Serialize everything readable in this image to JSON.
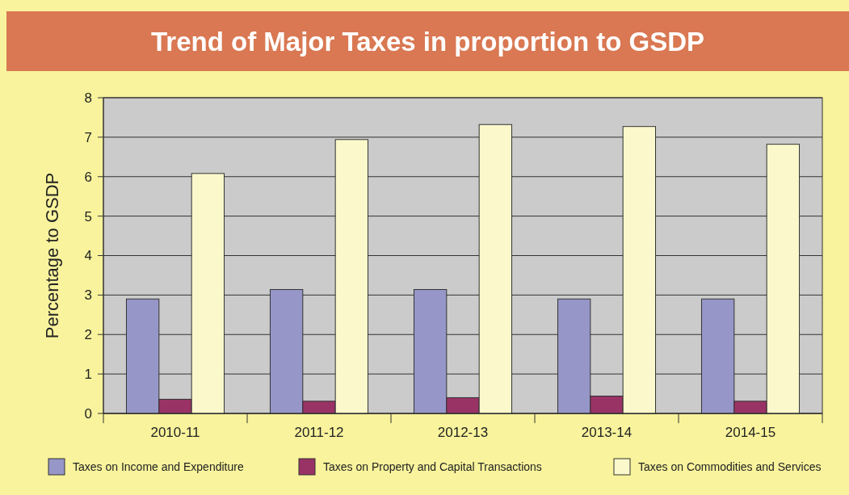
{
  "chart_data": {
    "type": "bar",
    "title": "Trend of Major Taxes in proportion to GSDP",
    "ylabel": "Percentage to GSDP",
    "categories": [
      "2010-11",
      "2011-12",
      "2012-13",
      "2013-14",
      "2014-15"
    ],
    "series": [
      {
        "name": "Taxes on Income and Expenditure",
        "color": "#9696c8",
        "values": [
          2.9,
          3.14,
          3.14,
          2.9,
          2.9
        ]
      },
      {
        "name": "Taxes on Property and Capital Transactions",
        "color": "#993366",
        "values": [
          0.36,
          0.31,
          0.4,
          0.44,
          0.31
        ]
      },
      {
        "name": "Taxes on Commodities and Services",
        "color": "#fbf9cc",
        "values": [
          6.08,
          6.94,
          7.32,
          7.27,
          6.82
        ]
      }
    ],
    "ylim": [
      0,
      8
    ],
    "yticks": [
      0,
      1,
      2,
      3,
      4,
      5,
      6,
      7,
      8
    ],
    "grid": "y",
    "legend": "bottom"
  }
}
